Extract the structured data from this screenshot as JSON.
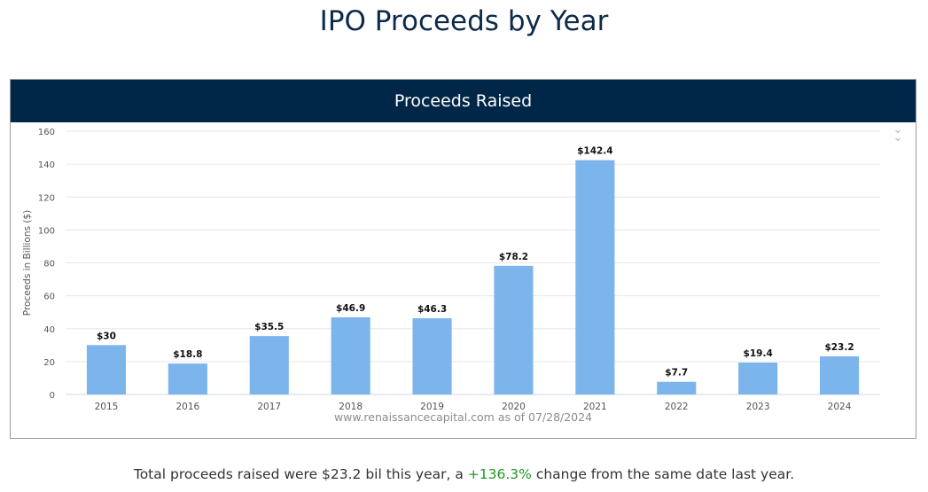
{
  "page": {
    "title": "IPO Proceeds by Year"
  },
  "panel": {
    "header": "Proceeds Raised",
    "menu_icon": "double-chevron-down-icon"
  },
  "chart_data": {
    "type": "bar",
    "title": "Proceeds Raised",
    "categories": [
      "2015",
      "2016",
      "2017",
      "2018",
      "2019",
      "2020",
      "2021",
      "2022",
      "2023",
      "2024"
    ],
    "values": [
      30,
      18.8,
      35.5,
      46.9,
      46.3,
      78.2,
      142.4,
      7.7,
      19.4,
      23.2
    ],
    "data_labels": [
      "$30",
      "$18.8",
      "$35.5",
      "$46.9",
      "$46.3",
      "$78.2",
      "$142.4",
      "$7.7",
      "$19.4",
      "$23.2"
    ],
    "xlabel": "",
    "ylabel": "Proceeds in Billions ($)",
    "ylim": [
      0,
      160
    ],
    "yticks": [
      0,
      20,
      40,
      60,
      80,
      100,
      120,
      140,
      160
    ],
    "grid": true,
    "bar_color": "#7cb5ec",
    "credit": "www.renaissancecapital.com as of 07/28/2024"
  },
  "summary": {
    "prefix": "Total proceeds raised were $23.2 bil this year, a ",
    "change": "+136.3%",
    "suffix": " change from the same date last year.",
    "change_color": "#1e9a1e"
  }
}
